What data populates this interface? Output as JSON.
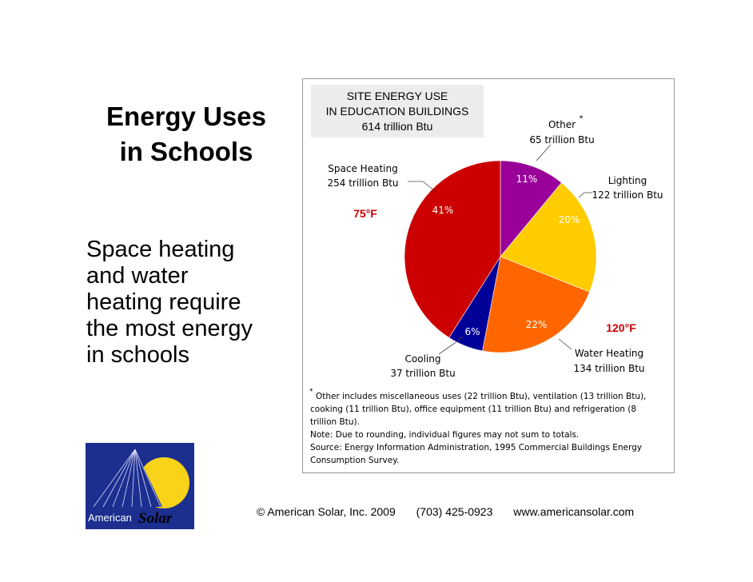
{
  "slide": {
    "title_line1": "Energy Uses",
    "title_line2": "in Schools",
    "body_lines": [
      "Space heating",
      "and water",
      "heating require",
      "the most energy",
      "in schools"
    ],
    "footer": {
      "copyright": "© American Solar, Inc. 2009",
      "phone": "(703) 425-0923",
      "website": "www.americansolar.com"
    },
    "logo": {
      "text_part1": "American",
      "text_part2": "Solar",
      "sun_color": "#f9d21a",
      "bg_color": "#1c2f8f"
    }
  },
  "chart_data": {
    "type": "pie",
    "title_lines": [
      "SITE ENERGY USE",
      "IN EDUCATION BUILDINGS",
      "614 trillion Btu"
    ],
    "slices": [
      {
        "label": "Other",
        "value_text": "65 trillion Btu",
        "value": 65,
        "percent": 11,
        "percent_label": "11%",
        "color": "#99009a"
      },
      {
        "label": "Lighting",
        "value_text": "122 trillion Btu",
        "value": 122,
        "percent": 20,
        "percent_label": "20%",
        "color": "#ffcc00"
      },
      {
        "label": "Water Heating",
        "value_text": "134 trillion Btu",
        "value": 134,
        "percent": 22,
        "percent_label": "22%",
        "color": "#ff6600"
      },
      {
        "label": "Cooling",
        "value_text": "37 trillion Btu",
        "value": 37,
        "percent": 6,
        "percent_label": "6%",
        "color": "#000099"
      },
      {
        "label": "Space Heating",
        "value_text": "254 trillion Btu",
        "value": 254,
        "percent": 41,
        "percent_label": "41%",
        "color": "#cc0000"
      }
    ],
    "annotations": [
      {
        "text": "75°F",
        "color": "#cc0000"
      },
      {
        "text": "120°F",
        "color": "#cc0000"
      },
      {
        "text": "*",
        "color": "#000000"
      }
    ],
    "notes": [
      "Other includes miscellaneous uses (22 trillion Btu), ventilation (13 trillion Btu),",
      "cooking (11 trillion Btu), office equipment (11 trillion Btu) and refrigeration (8",
      "trillion Btu).",
      "Note:  Due to rounding, individual figures may not sum to totals.",
      "Source:  Energy Information Administration, 1995 Commercial Buildings Energy",
      "Consumption Survey."
    ],
    "note_marker": "*"
  }
}
